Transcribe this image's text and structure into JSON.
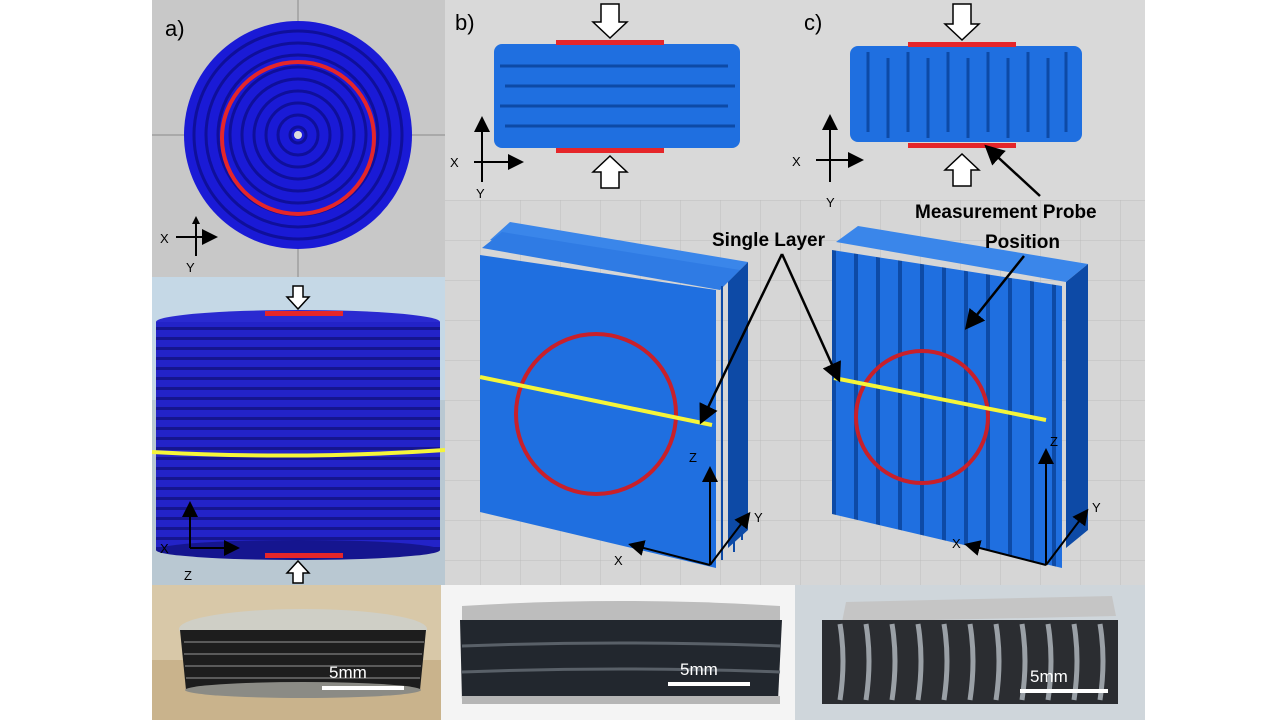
{
  "panels": {
    "a": {
      "label": "a)"
    },
    "b": {
      "label": "b)"
    },
    "c": {
      "label": "c)"
    }
  },
  "axes": {
    "x": "X",
    "y": "Y",
    "z": "Z"
  },
  "annotations": {
    "single_layer": "Single Layer",
    "probe_line1": "Measurement Probe",
    "probe_line2": "Position"
  },
  "scale_bars": {
    "left": "5mm",
    "middle": "5mm",
    "right": "5mm"
  },
  "colors": {
    "print_blue": "#1f6fe0",
    "disc_blue": "#1a1ad6",
    "probe_red": "#e5262a",
    "section_yellow": "#f5f53a",
    "bg_grey": "#d9d9d9"
  }
}
